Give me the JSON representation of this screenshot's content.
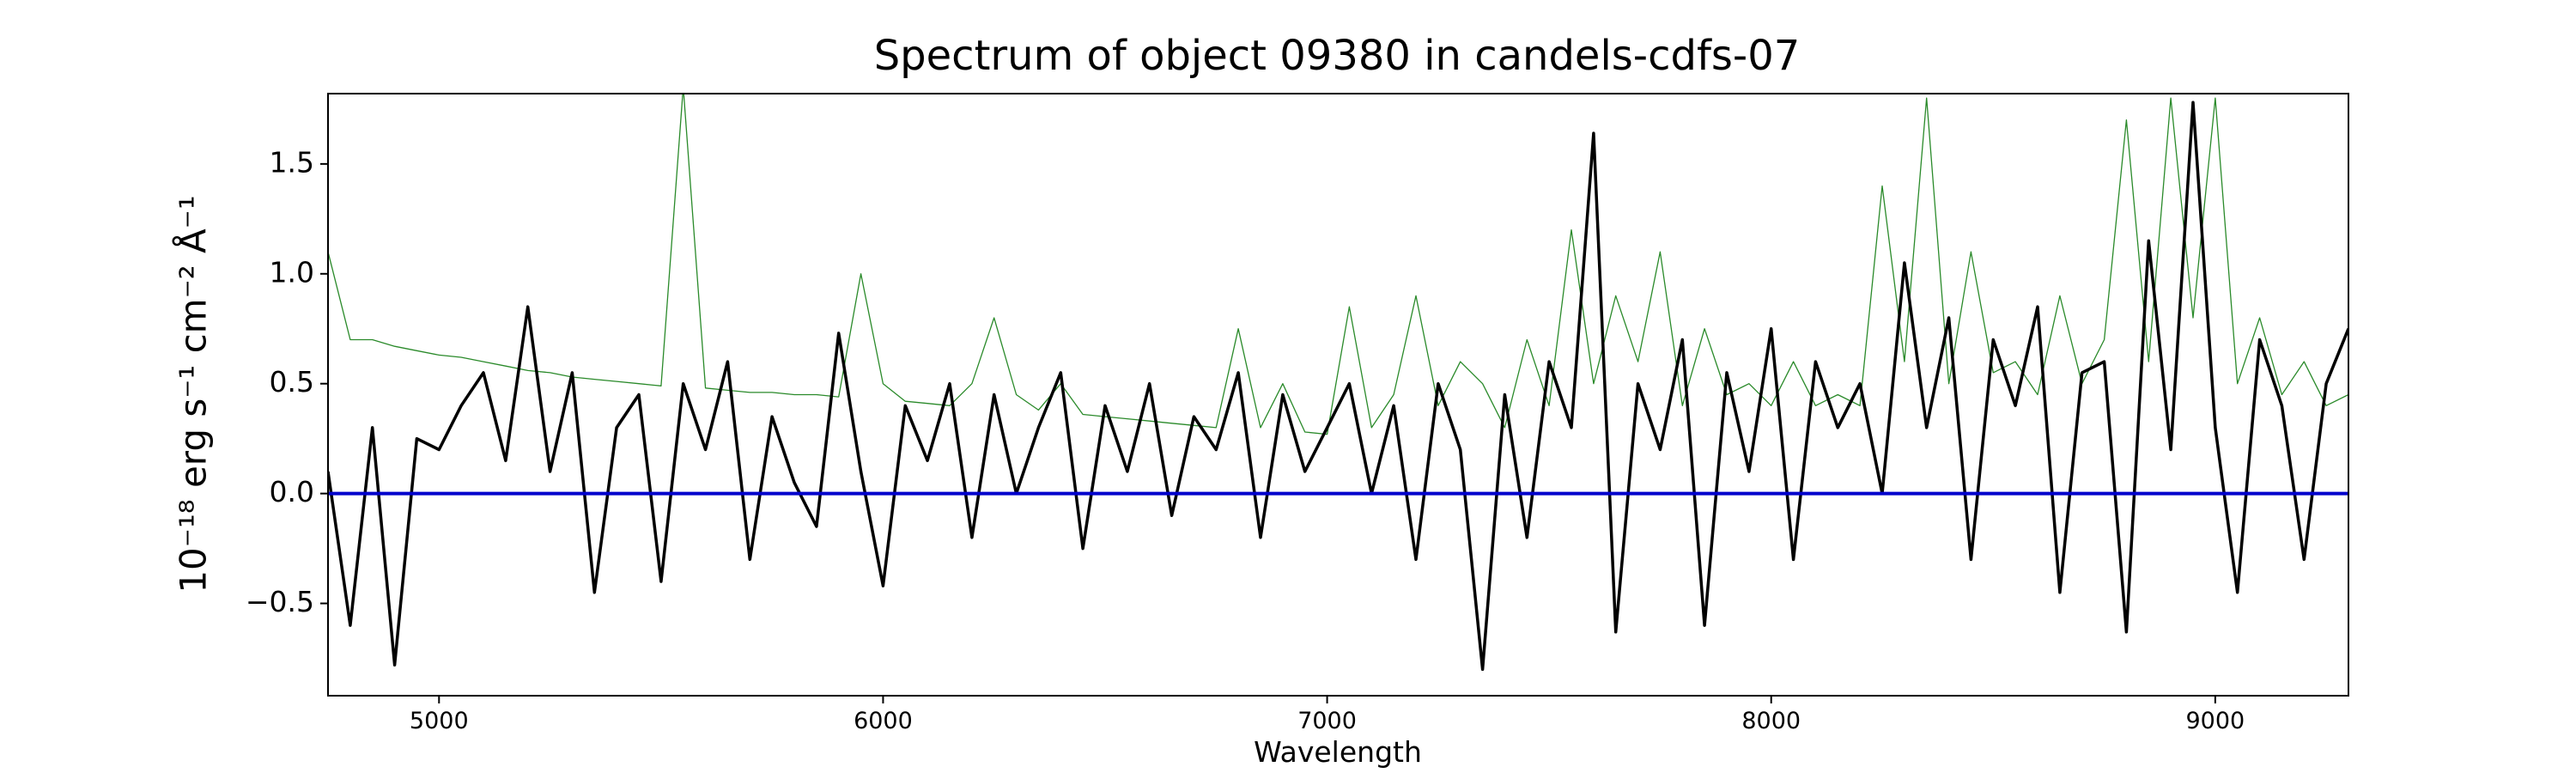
{
  "chart_data": {
    "type": "line",
    "title": "Spectrum of object 09380 in candels-cdfs-07",
    "xlabel": "Wavelength",
    "ylabel": "10⁻¹⁸ erg s⁻¹ cm⁻² Å⁻¹",
    "x": [
      4750,
      4800,
      4850,
      4900,
      4950,
      5000,
      5050,
      5100,
      5150,
      5200,
      5250,
      5300,
      5350,
      5400,
      5450,
      5500,
      5550,
      5600,
      5650,
      5700,
      5750,
      5800,
      5850,
      5900,
      5950,
      6000,
      6050,
      6100,
      6150,
      6200,
      6250,
      6300,
      6350,
      6400,
      6450,
      6500,
      6550,
      6600,
      6650,
      6700,
      6750,
      6800,
      6850,
      6900,
      6950,
      7000,
      7050,
      7100,
      7150,
      7200,
      7250,
      7300,
      7350,
      7400,
      7450,
      7500,
      7550,
      7600,
      7650,
      7700,
      7750,
      7800,
      7850,
      7900,
      7950,
      8000,
      8050,
      8100,
      8150,
      8200,
      8250,
      8300,
      8350,
      8400,
      8450,
      8500,
      8550,
      8600,
      8650,
      8700,
      8750,
      8800,
      8850,
      8900,
      8950,
      9000,
      9050,
      9100,
      9150,
      9200,
      9250,
      9300
    ],
    "series": [
      {
        "color": "#2a8a2a",
        "width": 1.3,
        "values": [
          1.1,
          0.7,
          0.7,
          0.67,
          0.65,
          0.63,
          0.62,
          0.6,
          0.58,
          0.56,
          0.55,
          0.53,
          0.52,
          0.51,
          0.5,
          0.49,
          1.85,
          0.48,
          0.47,
          0.46,
          0.46,
          0.45,
          0.45,
          0.44,
          1.0,
          0.5,
          0.42,
          0.41,
          0.4,
          0.5,
          0.8,
          0.45,
          0.38,
          0.5,
          0.36,
          0.35,
          0.34,
          0.33,
          0.32,
          0.31,
          0.3,
          0.75,
          0.3,
          0.5,
          0.28,
          0.27,
          0.85,
          0.3,
          0.45,
          0.9,
          0.4,
          0.6,
          0.5,
          0.3,
          0.7,
          0.4,
          1.2,
          0.5,
          0.9,
          0.6,
          1.1,
          0.4,
          0.75,
          0.45,
          0.5,
          0.4,
          0.6,
          0.4,
          0.45,
          0.4,
          1.4,
          0.6,
          1.8,
          0.5,
          1.1,
          0.55,
          0.6,
          0.45,
          0.9,
          0.5,
          0.7,
          1.7,
          0.6,
          1.8,
          0.8,
          1.8,
          0.5,
          0.8,
          0.45,
          0.6,
          0.4,
          0.45
        ]
      },
      {
        "color": "#000000",
        "width": 3.5,
        "values": [
          0.1,
          -0.6,
          0.3,
          -0.78,
          0.25,
          0.2,
          0.4,
          0.55,
          0.15,
          0.85,
          0.1,
          0.55,
          -0.45,
          0.3,
          0.45,
          -0.4,
          0.5,
          0.2,
          0.6,
          -0.3,
          0.35,
          0.05,
          -0.15,
          0.73,
          0.1,
          -0.42,
          0.4,
          0.15,
          0.5,
          -0.2,
          0.45,
          0.0,
          0.3,
          0.55,
          -0.25,
          0.4,
          0.1,
          0.5,
          -0.1,
          0.35,
          0.2,
          0.55,
          -0.2,
          0.45,
          0.1,
          0.3,
          0.5,
          0.0,
          0.4,
          -0.3,
          0.5,
          0.2,
          -0.8,
          0.45,
          -0.2,
          0.6,
          0.3,
          1.64,
          -0.63,
          0.5,
          0.2,
          0.7,
          -0.6,
          0.55,
          0.1,
          0.75,
          -0.3,
          0.6,
          0.3,
          0.5,
          0.0,
          1.05,
          0.3,
          0.8,
          -0.3,
          0.7,
          0.4,
          0.85,
          -0.45,
          0.55,
          0.6,
          -0.63,
          1.15,
          0.2,
          1.78,
          0.3,
          -0.45,
          0.7,
          0.4,
          -0.3,
          0.5,
          0.75
        ]
      },
      {
        "color": "#0000cc",
        "width": 4,
        "x": [
          4750,
          9300
        ],
        "values": [
          0,
          0
        ]
      }
    ],
    "xlim": [
      4750,
      9300
    ],
    "ylim": [
      -0.92,
      1.82
    ],
    "xticks": [
      5000,
      6000,
      7000,
      8000,
      9000
    ],
    "yticks": [
      {
        "value": -0.5,
        "label": "−0.5"
      },
      {
        "value": 0,
        "label": "0.0"
      },
      {
        "value": 0.5,
        "label": "0.5"
      },
      {
        "value": 1,
        "label": "1.0"
      },
      {
        "value": 1.5,
        "label": "1.5"
      }
    ]
  }
}
